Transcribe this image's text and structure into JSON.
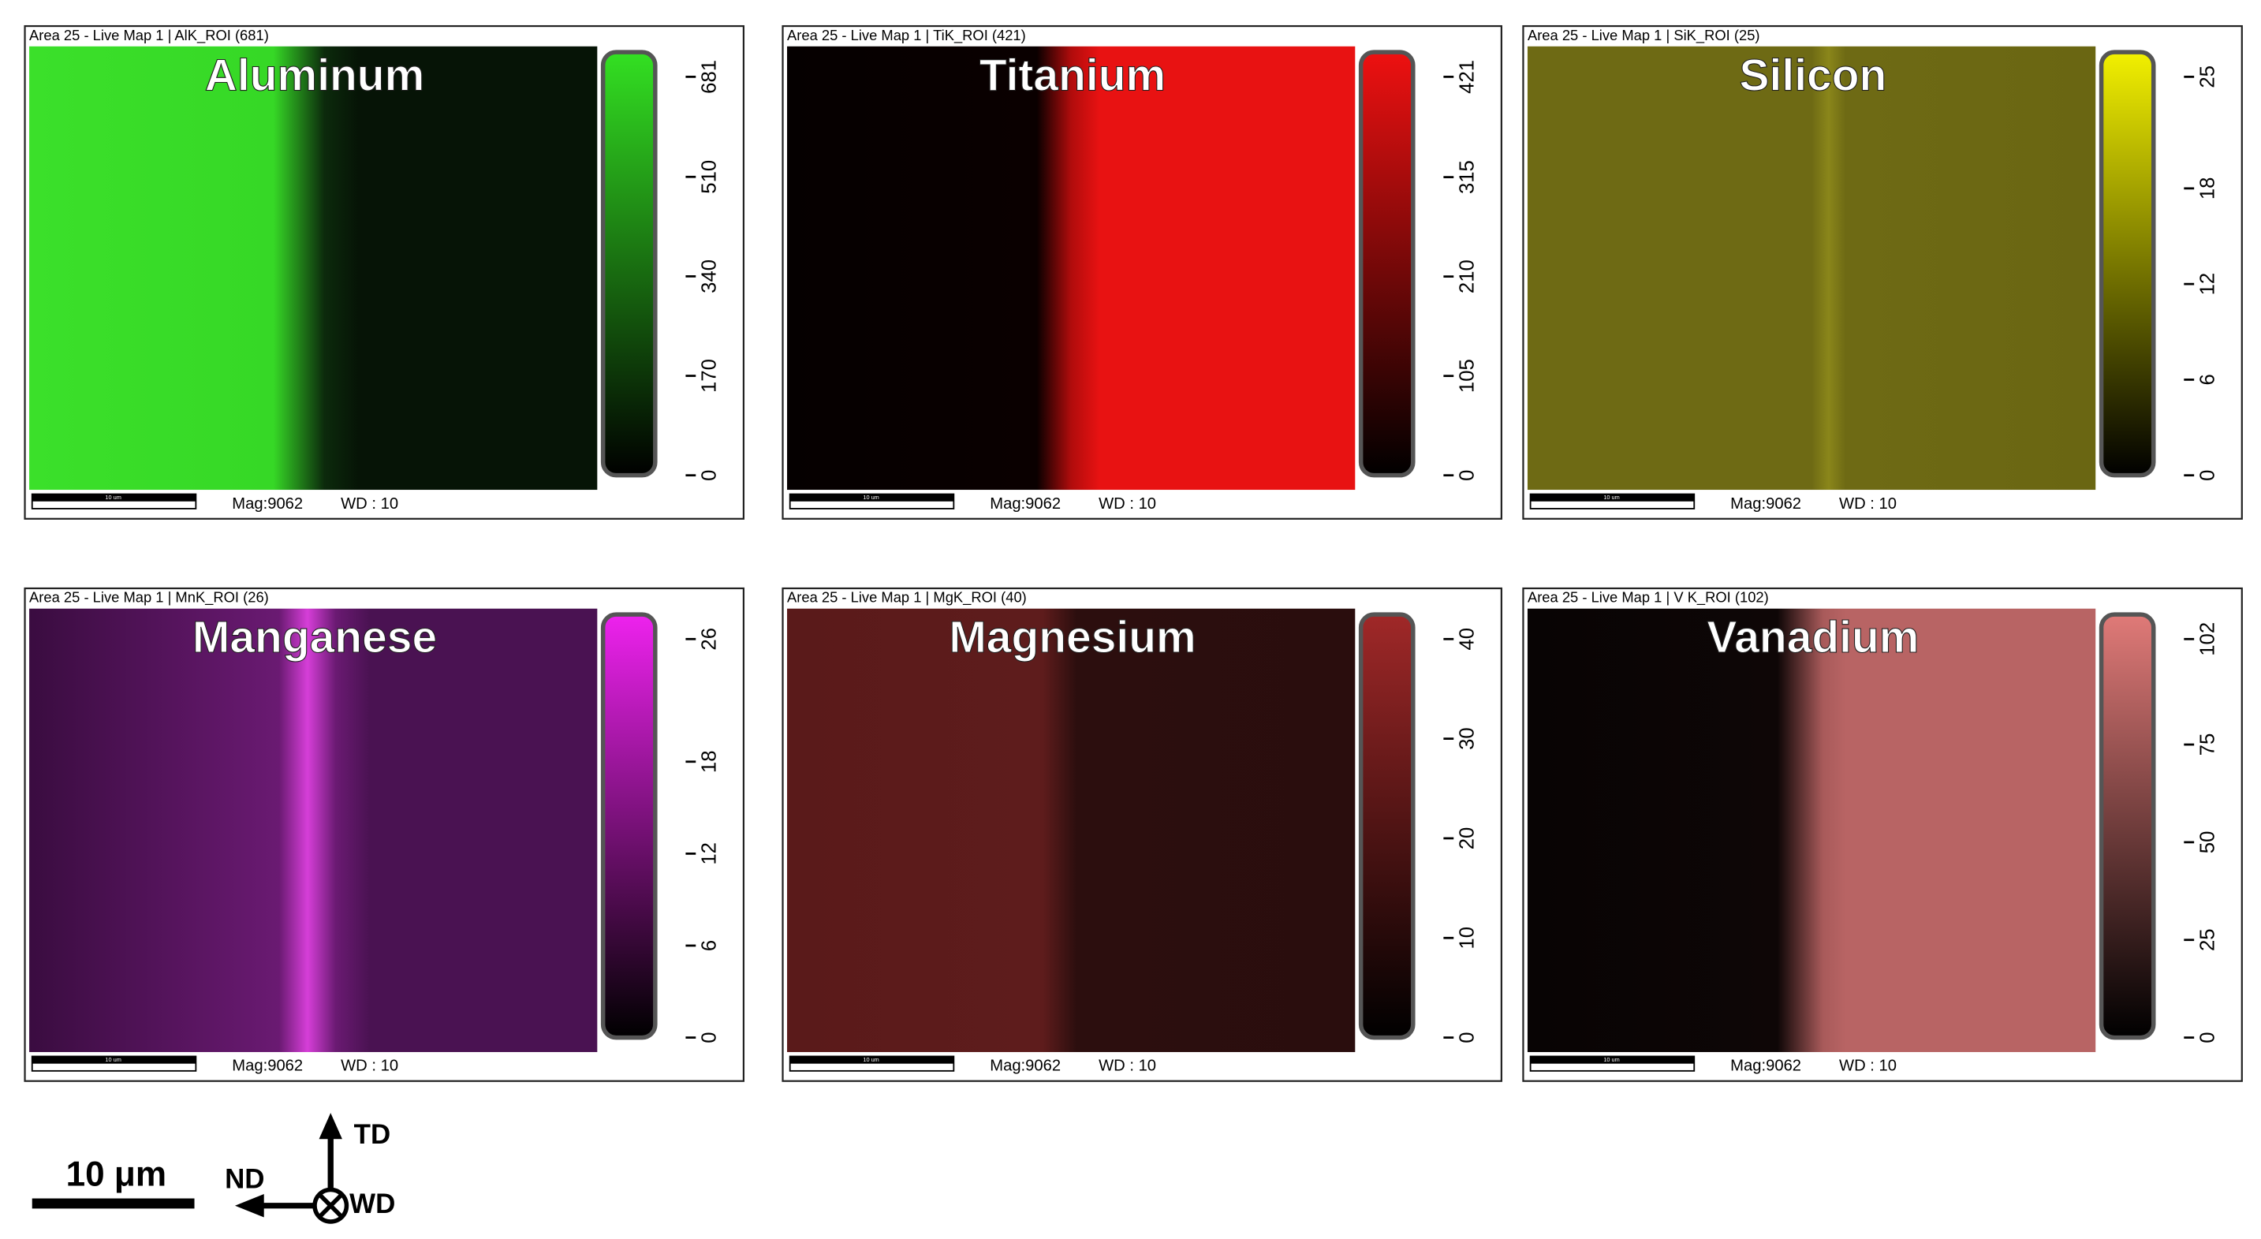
{
  "panels": [
    {
      "header": "Area 25 - Live Map 1 | AlK_ROI (681)",
      "title": "Aluminum",
      "color": "#33e022",
      "ticks": [
        0,
        170,
        340,
        510,
        681
      ],
      "scale_label": "10 um",
      "mag": "Mag:9062",
      "wd": "WD : 10"
    },
    {
      "header": "Area 25 - Live Map 1 | TiK_ROI (421)",
      "title": "Titanium",
      "color": "#ee1111",
      "ticks": [
        0,
        105,
        210,
        315,
        421
      ],
      "scale_label": "10 um",
      "mag": "Mag:9062",
      "wd": "WD : 10"
    },
    {
      "header": "Area 25 - Live Map 1 | SiK_ROI (25)",
      "title": "Silicon",
      "color": "#f2f000",
      "ticks": [
        0,
        6,
        12,
        18,
        25
      ],
      "scale_label": "10 um",
      "mag": "Mag:9062",
      "wd": "WD : 10"
    },
    {
      "header": "Area 25 - Live Map 1 | MnK_ROI (26)",
      "title": "Manganese",
      "color": "#ee22ee",
      "ticks": [
        0,
        6,
        12,
        18,
        26
      ],
      "scale_label": "10 um",
      "mag": "Mag:9062",
      "wd": "WD : 10"
    },
    {
      "header": "Area 25 - Live Map 1 | MgK_ROI (40)",
      "title": "Magnesium",
      "color": "#a02828",
      "ticks": [
        0,
        10,
        20,
        30,
        40
      ],
      "scale_label": "10 um",
      "mag": "Mag:9062",
      "wd": "WD : 10"
    },
    {
      "header": "Area 25 - Live Map 1 | V K_ROI (102)",
      "title": "Vanadium",
      "color": "#e07a78",
      "ticks": [
        0,
        25,
        50,
        75,
        102
      ],
      "scale_label": "10 um",
      "mag": "Mag:9062",
      "wd": "WD : 10"
    }
  ],
  "legend": {
    "scale": "10 μm",
    "nd": "ND",
    "td": "TD",
    "wd": "WD"
  }
}
